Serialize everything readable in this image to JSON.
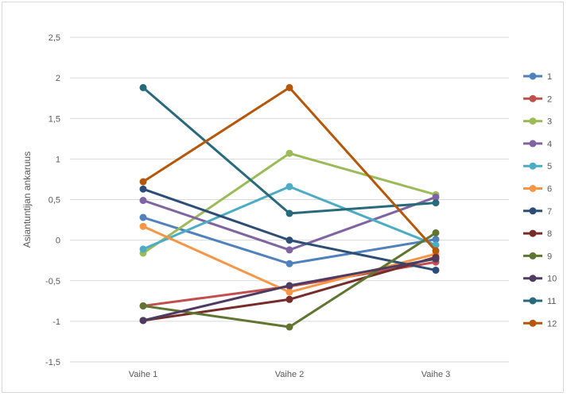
{
  "chart_data": {
    "type": "line",
    "title": "",
    "xlabel": "",
    "ylabel": "Asiantuntijan ankaruus",
    "categories": [
      "Vaihe 1",
      "Vaihe 2",
      "Vaihe 3"
    ],
    "ylim": [
      -1.5,
      2.5
    ],
    "y_ticks": [
      "2,5",
      "2",
      "1,5",
      "1",
      "0,5",
      "0",
      "-0,5",
      "-1",
      "-1,5"
    ],
    "y_tick_values": [
      2.5,
      2,
      1.5,
      1,
      0.5,
      0,
      -0.5,
      -1,
      -1.5
    ],
    "grid": true,
    "legend_position": "right",
    "series": [
      {
        "name": "1",
        "color": "#4f81bd",
        "values": [
          0.28,
          -0.29,
          0.01
        ]
      },
      {
        "name": "2",
        "color": "#c0504d",
        "values": [
          -0.81,
          -0.57,
          -0.27
        ]
      },
      {
        "name": "3",
        "color": "#9bbb59",
        "values": [
          -0.16,
          1.07,
          0.56
        ]
      },
      {
        "name": "4",
        "color": "#8064a2",
        "values": [
          0.49,
          -0.12,
          0.53
        ]
      },
      {
        "name": "5",
        "color": "#4bacc6",
        "values": [
          -0.11,
          0.66,
          -0.06
        ]
      },
      {
        "name": "6",
        "color": "#f79646",
        "values": [
          0.17,
          -0.64,
          -0.17
        ]
      },
      {
        "name": "7",
        "color": "#2c4d75",
        "values": [
          0.63,
          0.0,
          -0.37
        ]
      },
      {
        "name": "8",
        "color": "#772c2a",
        "values": [
          -0.99,
          -0.73,
          -0.21
        ]
      },
      {
        "name": "9",
        "color": "#5f7530",
        "values": [
          -0.81,
          -1.07,
          0.09
        ]
      },
      {
        "name": "10",
        "color": "#4d3b62",
        "values": [
          -0.99,
          -0.56,
          -0.23
        ]
      },
      {
        "name": "11",
        "color": "#276a7c",
        "values": [
          1.88,
          0.33,
          0.46
        ]
      },
      {
        "name": "12",
        "color": "#b65708",
        "values": [
          0.72,
          1.88,
          -0.13
        ]
      }
    ]
  }
}
